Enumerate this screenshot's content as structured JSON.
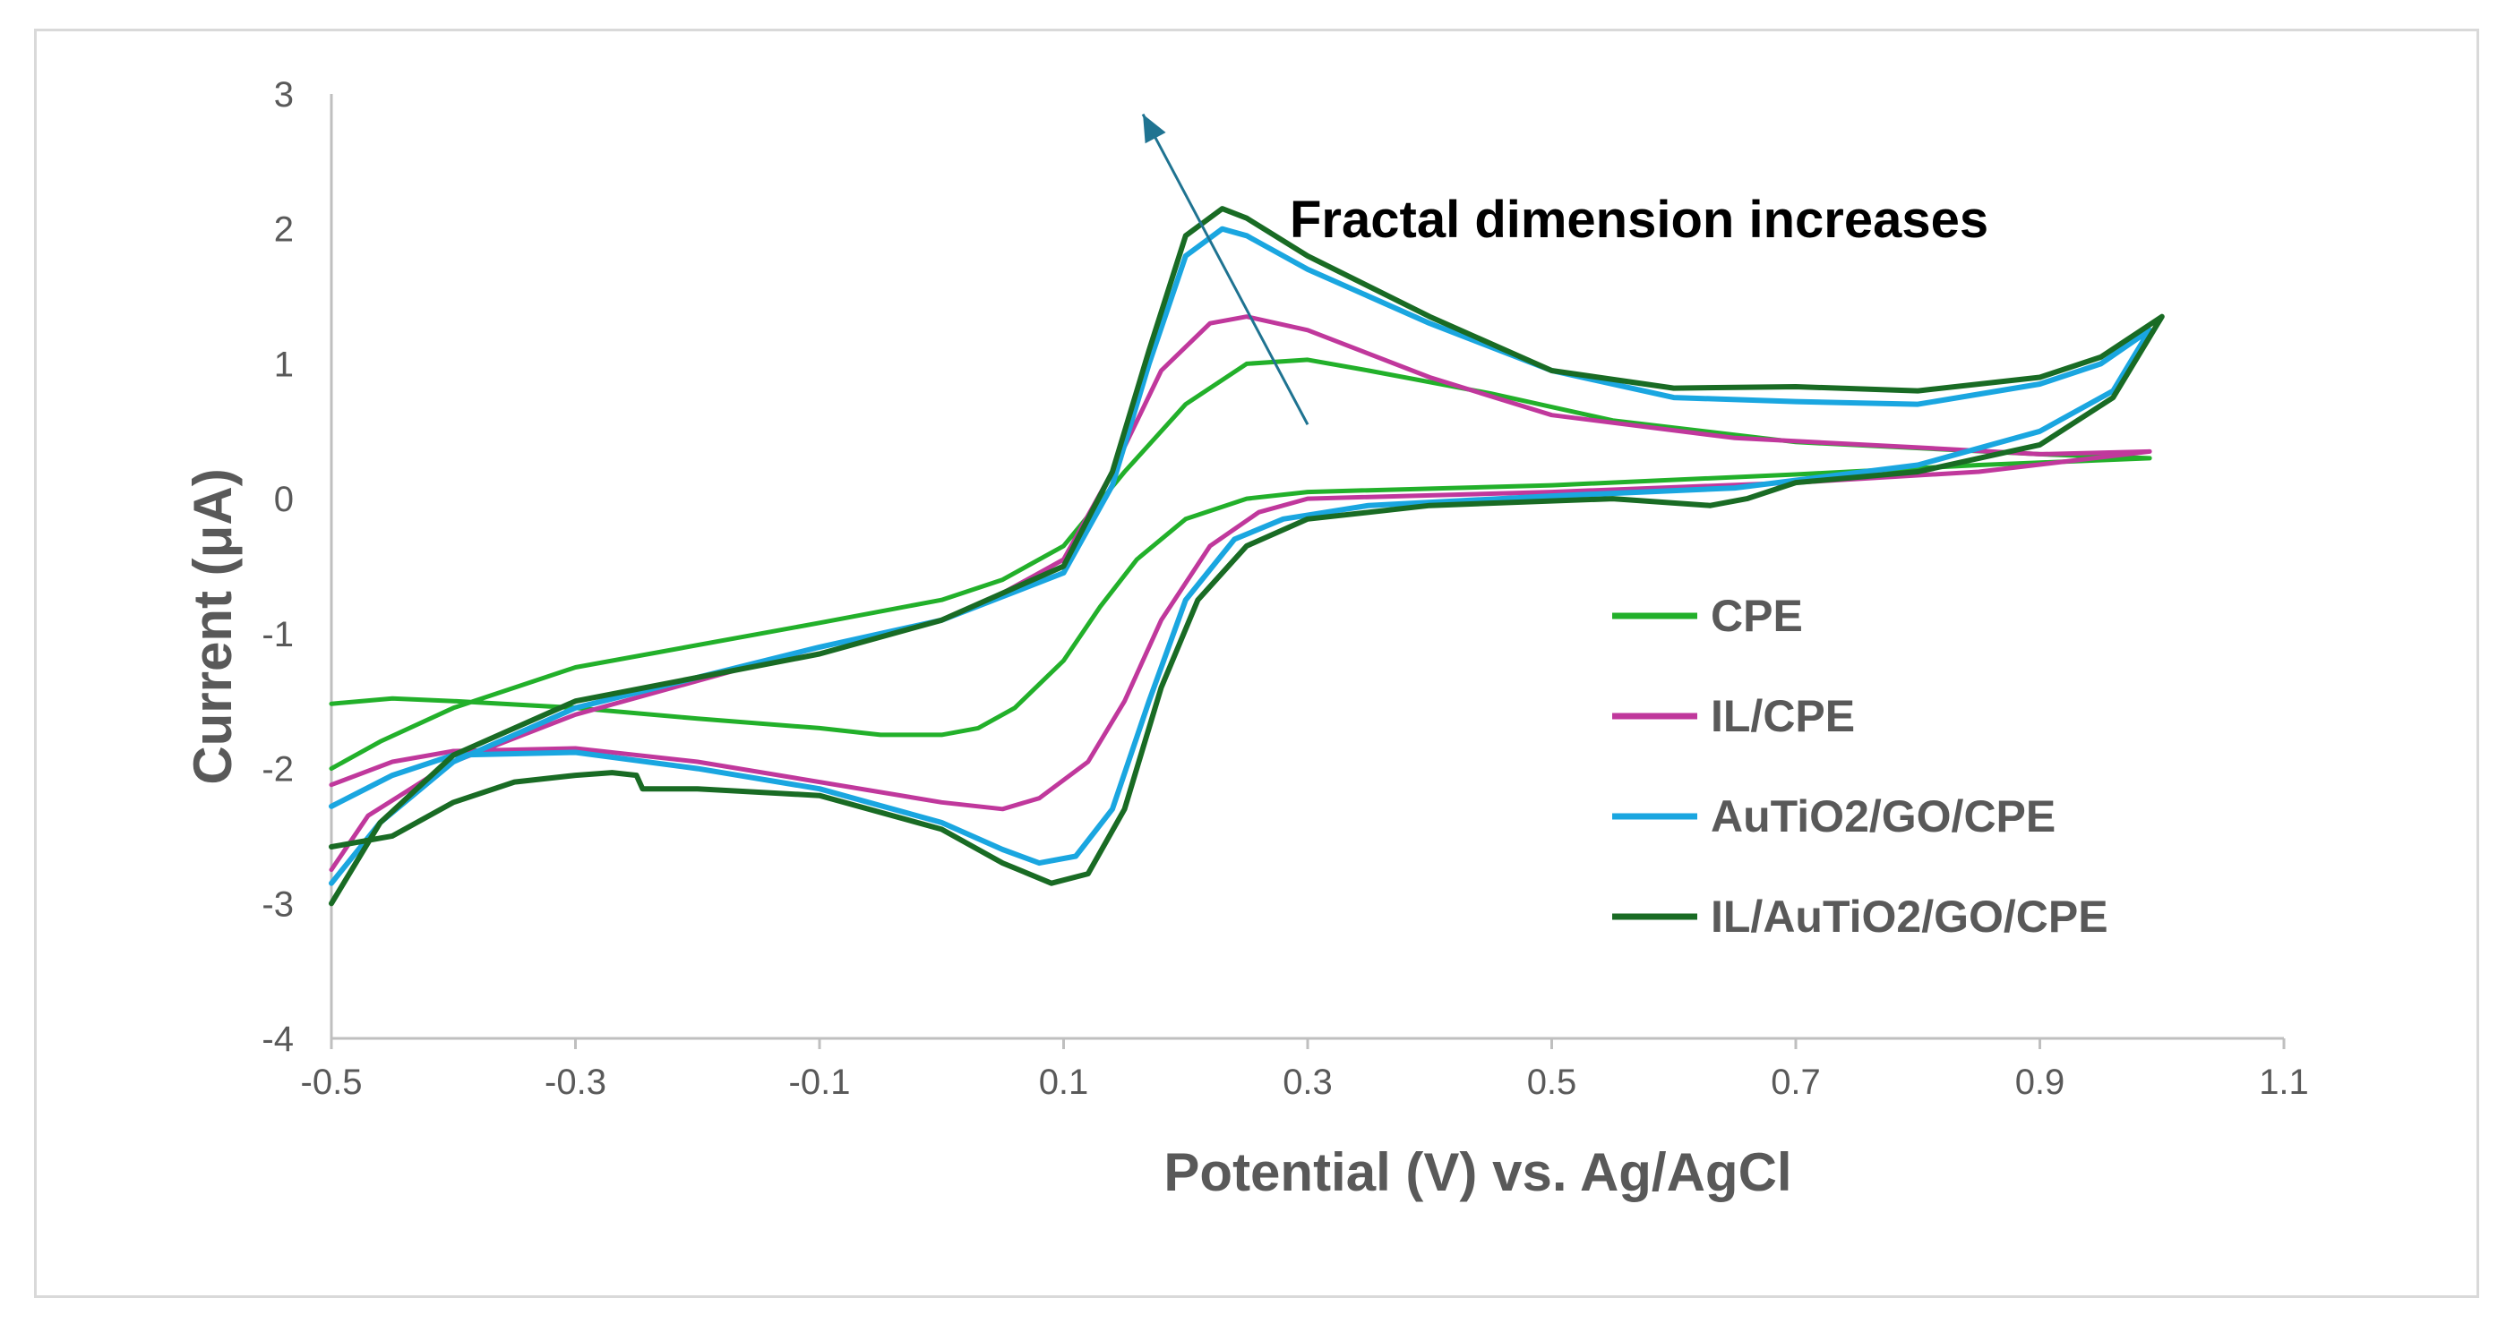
{
  "chart_data": {
    "type": "line",
    "xlabel": "Potential (V) vs. Ag/AgCl",
    "ylabel": "Current (μA)",
    "xlim": [
      -0.5,
      1.1
    ],
    "ylim": [
      -4,
      3
    ],
    "x_ticks": [
      "-0.5",
      "-0.3",
      "-0.1",
      "0.1",
      "0.3",
      "0.5",
      "0.7",
      "0.9",
      "1.1"
    ],
    "y_ticks": [
      "3",
      "2",
      "1",
      "0",
      "-1",
      "-2",
      "-3",
      "-4"
    ],
    "grid": false,
    "legend_position": "right",
    "annotation": {
      "text": "Fractal  dimension increases",
      "arrow_from": [
        0.3,
        0.55
      ],
      "arrow_to": [
        0.165,
        2.85
      ]
    },
    "series": [
      {
        "name": "CPE",
        "color": "#22b02a",
        "stroke": 5,
        "points": [
          [
            -0.5,
            -1.52
          ],
          [
            -0.45,
            -1.48
          ],
          [
            -0.4,
            -1.5
          ],
          [
            -0.3,
            -1.55
          ],
          [
            -0.2,
            -1.63
          ],
          [
            -0.1,
            -1.7
          ],
          [
            -0.05,
            -1.75
          ],
          [
            0.0,
            -1.75
          ],
          [
            0.03,
            -1.7
          ],
          [
            0.06,
            -1.55
          ],
          [
            0.1,
            -1.2
          ],
          [
            0.13,
            -0.8
          ],
          [
            0.16,
            -0.45
          ],
          [
            0.2,
            -0.15
          ],
          [
            0.25,
            0.0
          ],
          [
            0.3,
            0.05
          ],
          [
            0.5,
            0.1
          ],
          [
            0.7,
            0.18
          ],
          [
            0.85,
            0.25
          ],
          [
            0.99,
            0.3
          ],
          [
            0.9,
            0.33
          ],
          [
            0.7,
            0.42
          ],
          [
            0.55,
            0.58
          ],
          [
            0.45,
            0.78
          ],
          [
            0.35,
            0.95
          ],
          [
            0.3,
            1.03
          ],
          [
            0.25,
            1.0
          ],
          [
            0.2,
            0.7
          ],
          [
            0.15,
            0.2
          ],
          [
            0.1,
            -0.35
          ],
          [
            0.05,
            -0.6
          ],
          [
            0.0,
            -0.75
          ],
          [
            -0.1,
            -0.92
          ],
          [
            -0.3,
            -1.25
          ],
          [
            -0.4,
            -1.55
          ],
          [
            -0.46,
            -1.8
          ],
          [
            -0.5,
            -2.0
          ]
        ]
      },
      {
        "name": "IL/CPE",
        "color": "#c0389c",
        "stroke": 5,
        "points": [
          [
            -0.5,
            -2.12
          ],
          [
            -0.45,
            -1.95
          ],
          [
            -0.4,
            -1.87
          ],
          [
            -0.3,
            -1.85
          ],
          [
            -0.2,
            -1.95
          ],
          [
            -0.1,
            -2.1
          ],
          [
            0.0,
            -2.25
          ],
          [
            0.05,
            -2.3
          ],
          [
            0.08,
            -2.22
          ],
          [
            0.12,
            -1.95
          ],
          [
            0.15,
            -1.5
          ],
          [
            0.18,
            -0.9
          ],
          [
            0.22,
            -0.35
          ],
          [
            0.26,
            -0.1
          ],
          [
            0.3,
            0.0
          ],
          [
            0.5,
            0.05
          ],
          [
            0.7,
            0.12
          ],
          [
            0.85,
            0.2
          ],
          [
            0.99,
            0.35
          ],
          [
            0.9,
            0.33
          ],
          [
            0.8,
            0.38
          ],
          [
            0.65,
            0.45
          ],
          [
            0.5,
            0.62
          ],
          [
            0.4,
            0.9
          ],
          [
            0.3,
            1.25
          ],
          [
            0.25,
            1.35
          ],
          [
            0.22,
            1.3
          ],
          [
            0.18,
            0.95
          ],
          [
            0.14,
            0.2
          ],
          [
            0.1,
            -0.45
          ],
          [
            0.05,
            -0.7
          ],
          [
            0.0,
            -0.9
          ],
          [
            -0.1,
            -1.1
          ],
          [
            -0.3,
            -1.6
          ],
          [
            -0.4,
            -1.95
          ],
          [
            -0.47,
            -2.35
          ],
          [
            -0.5,
            -2.75
          ]
        ]
      },
      {
        "name": "AuTiO2/GO/CPE",
        "color": "#1aa6e0",
        "stroke": 6,
        "points": [
          [
            -0.5,
            -2.28
          ],
          [
            -0.45,
            -2.05
          ],
          [
            -0.4,
            -1.9
          ],
          [
            -0.3,
            -1.88
          ],
          [
            -0.2,
            -2.0
          ],
          [
            -0.1,
            -2.15
          ],
          [
            0.0,
            -2.4
          ],
          [
            0.05,
            -2.6
          ],
          [
            0.08,
            -2.7
          ],
          [
            0.11,
            -2.65
          ],
          [
            0.14,
            -2.3
          ],
          [
            0.17,
            -1.5
          ],
          [
            0.2,
            -0.75
          ],
          [
            0.24,
            -0.3
          ],
          [
            0.28,
            -0.15
          ],
          [
            0.35,
            -0.05
          ],
          [
            0.5,
            0.02
          ],
          [
            0.65,
            0.08
          ],
          [
            0.8,
            0.25
          ],
          [
            0.9,
            0.5
          ],
          [
            0.96,
            0.8
          ],
          [
            0.99,
            1.25
          ],
          [
            0.95,
            1.0
          ],
          [
            0.9,
            0.85
          ],
          [
            0.8,
            0.7
          ],
          [
            0.7,
            0.72
          ],
          [
            0.6,
            0.75
          ],
          [
            0.5,
            0.95
          ],
          [
            0.4,
            1.3
          ],
          [
            0.3,
            1.7
          ],
          [
            0.25,
            1.95
          ],
          [
            0.23,
            2.0
          ],
          [
            0.2,
            1.8
          ],
          [
            0.17,
            1.0
          ],
          [
            0.14,
            0.1
          ],
          [
            0.1,
            -0.55
          ],
          [
            0.0,
            -0.9
          ],
          [
            -0.1,
            -1.1
          ],
          [
            -0.3,
            -1.55
          ],
          [
            -0.4,
            -1.95
          ],
          [
            -0.46,
            -2.4
          ],
          [
            -0.5,
            -2.85
          ]
        ]
      },
      {
        "name": "IL/AuTiO2/GO/CPE",
        "color": "#196b24",
        "stroke": 6,
        "points": [
          [
            -0.5,
            -2.58
          ],
          [
            -0.45,
            -2.5
          ],
          [
            -0.4,
            -2.25
          ],
          [
            -0.35,
            -2.1
          ],
          [
            -0.3,
            -2.05
          ],
          [
            -0.27,
            -2.03
          ],
          [
            -0.25,
            -2.05
          ],
          [
            -0.245,
            -2.15
          ],
          [
            -0.2,
            -2.15
          ],
          [
            -0.1,
            -2.2
          ],
          [
            0.0,
            -2.45
          ],
          [
            0.05,
            -2.7
          ],
          [
            0.09,
            -2.85
          ],
          [
            0.12,
            -2.78
          ],
          [
            0.15,
            -2.3
          ],
          [
            0.18,
            -1.4
          ],
          [
            0.21,
            -0.75
          ],
          [
            0.25,
            -0.35
          ],
          [
            0.3,
            -0.15
          ],
          [
            0.4,
            -0.05
          ],
          [
            0.55,
            0.0
          ],
          [
            0.63,
            -0.05
          ],
          [
            0.66,
            0.0
          ],
          [
            0.7,
            0.12
          ],
          [
            0.8,
            0.2
          ],
          [
            0.9,
            0.4
          ],
          [
            0.96,
            0.75
          ],
          [
            1.0,
            1.35
          ],
          [
            0.95,
            1.05
          ],
          [
            0.9,
            0.9
          ],
          [
            0.8,
            0.8
          ],
          [
            0.7,
            0.83
          ],
          [
            0.6,
            0.82
          ],
          [
            0.5,
            0.95
          ],
          [
            0.4,
            1.35
          ],
          [
            0.3,
            1.8
          ],
          [
            0.25,
            2.08
          ],
          [
            0.23,
            2.15
          ],
          [
            0.2,
            1.95
          ],
          [
            0.17,
            1.1
          ],
          [
            0.14,
            0.2
          ],
          [
            0.1,
            -0.5
          ],
          [
            0.0,
            -0.9
          ],
          [
            -0.1,
            -1.15
          ],
          [
            -0.3,
            -1.5
          ],
          [
            -0.4,
            -1.9
          ],
          [
            -0.46,
            -2.4
          ],
          [
            -0.5,
            -3.0
          ]
        ]
      }
    ]
  }
}
